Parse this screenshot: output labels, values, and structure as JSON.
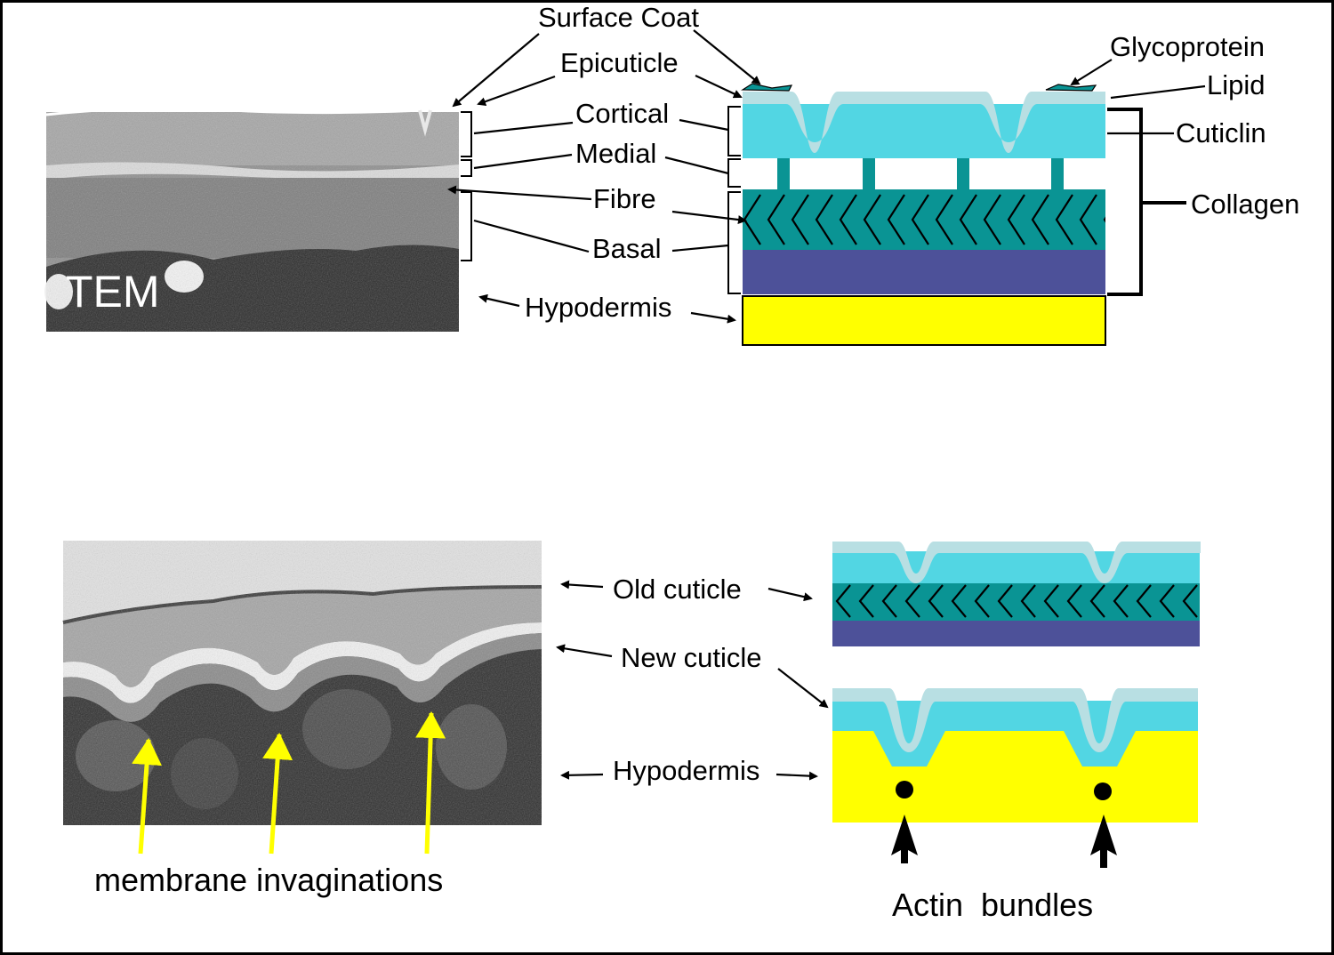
{
  "top_micrograph": {
    "tag": "TEM"
  },
  "top_labels": {
    "surface_coat": "Surface Coat",
    "epicuticle": "Epicuticle",
    "cortical": "Cortical",
    "medial": "Medial",
    "fibre": "Fibre",
    "basal": "Basal",
    "hypodermis": "Hypodermis"
  },
  "right_labels": {
    "glycoprotein": "Glycoprotein",
    "lipid": "Lipid",
    "cuticlin": "Cuticlin",
    "collagen": "Collagen"
  },
  "bottom_labels": {
    "old_cuticle": "Old cuticle",
    "new_cuticle": "New cuticle",
    "hypodermis": "Hypodermis",
    "membrane_invaginations": "membrane invaginations",
    "actin_bundles": "Actin  bundles"
  },
  "colors": {
    "epicuticle_pale": "#b8dfe3",
    "cortical_cyan": "#52d6e3",
    "fibre_teal": "#0a9494",
    "basal_purple": "#4d5199",
    "hypodermis_yellow": "#ffff00",
    "pointer_yellow": "#ffff00"
  }
}
